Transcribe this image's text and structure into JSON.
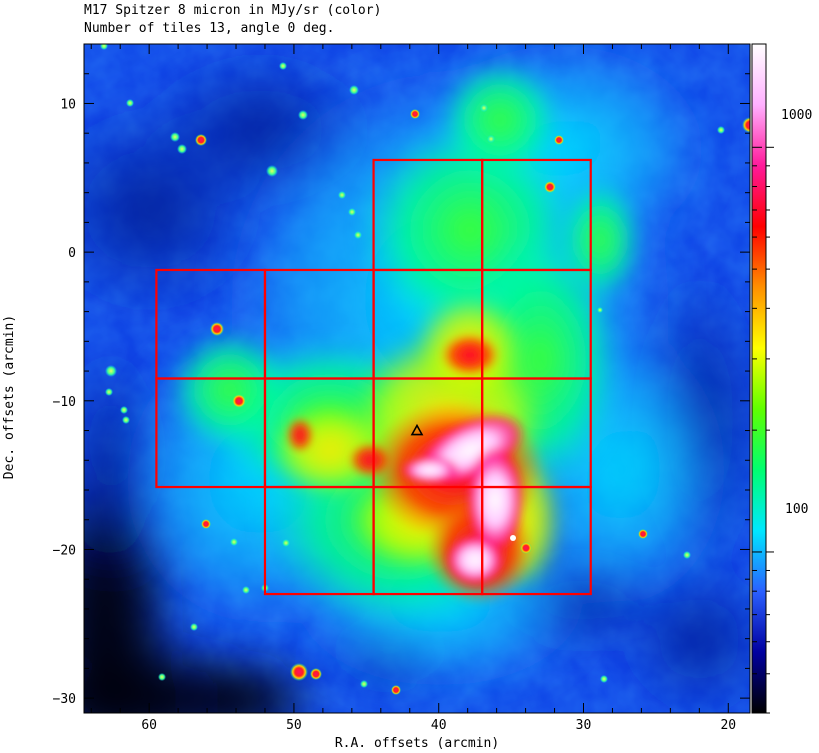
{
  "header": {
    "title": "M17 Spitzer 8 micron in MJy/sr (color)",
    "subtitle": "Number of tiles 13, angle 0 deg."
  },
  "axes": {
    "xlabel": "R.A. offsets (arcmin)",
    "ylabel": "Dec. offsets (arcmin)",
    "x_ticks": [
      "60",
      "50",
      "40",
      "30",
      "20"
    ],
    "y_ticks": [
      "10",
      "0",
      "−10",
      "−20",
      "−30"
    ],
    "xlim": [
      64.5,
      18.5
    ],
    "ylim": [
      -31,
      14
    ]
  },
  "colorbar": {
    "labels": [
      "1000",
      "100"
    ],
    "scale": "log",
    "colors": [
      "#000000",
      "#0000a0",
      "#2a60ff",
      "#00e8ff",
      "#00ff70",
      "#60ff00",
      "#ffff00",
      "#ff9000",
      "#ff0000",
      "#ff1a9a",
      "#ffb0ff",
      "#ffffff"
    ]
  },
  "tiles_grid": {
    "color": "#ff0000",
    "columns_ra": [
      59.5,
      52,
      44.5,
      37,
      29.5
    ],
    "rows_dec": [
      6.2,
      -1.2,
      -8.5,
      -15.8,
      -23.0
    ],
    "tiles": [
      {
        "ra": [
          44.5,
          37
        ],
        "dec": [
          6.2,
          -1.2
        ]
      },
      {
        "ra": [
          37,
          29.5
        ],
        "dec": [
          6.2,
          -1.2
        ]
      },
      {
        "ra": [
          59.5,
          52
        ],
        "dec": [
          -1.2,
          -8.5
        ]
      },
      {
        "ra": [
          52,
          44.5
        ],
        "dec": [
          -1.2,
          -8.5
        ]
      },
      {
        "ra": [
          44.5,
          37
        ],
        "dec": [
          -1.2,
          -8.5
        ]
      },
      {
        "ra": [
          37,
          29.5
        ],
        "dec": [
          -1.2,
          -8.5
        ]
      },
      {
        "ra": [
          59.5,
          52
        ],
        "dec": [
          -8.5,
          -15.8
        ]
      },
      {
        "ra": [
          52,
          44.5
        ],
        "dec": [
          -8.5,
          -15.8
        ]
      },
      {
        "ra": [
          44.5,
          37
        ],
        "dec": [
          -8.5,
          -15.8
        ]
      },
      {
        "ra": [
          37,
          29.5
        ],
        "dec": [
          -8.5,
          -15.8
        ]
      },
      {
        "ra": [
          52,
          44.5
        ],
        "dec": [
          -15.8,
          -23.0
        ]
      },
      {
        "ra": [
          44.5,
          37
        ],
        "dec": [
          -15.8,
          -23.0
        ]
      },
      {
        "ra": [
          37,
          29.5
        ],
        "dec": [
          -15.8,
          -23.0
        ]
      }
    ]
  },
  "marker": {
    "shape": "triangle",
    "ra": 41.5,
    "dec": -12.0
  },
  "image_colors": {
    "background_dark": "#000010",
    "diffuse_blue": "#0a3cdc",
    "cyan": "#00e6ff",
    "green": "#00ff60",
    "yellow": "#ffff00",
    "red": "#ff0000",
    "magenta": "#ff1493",
    "white_peak": "#ffffff"
  }
}
